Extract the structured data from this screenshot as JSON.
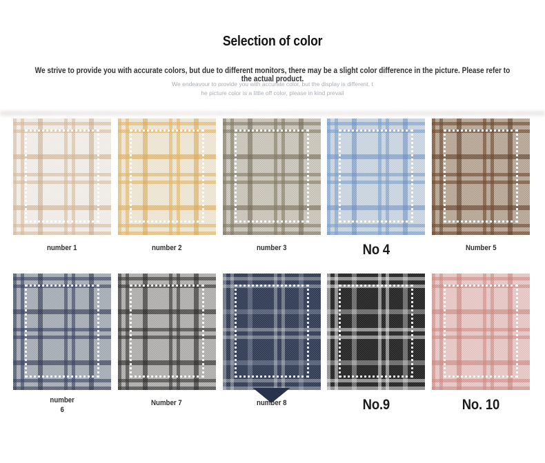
{
  "page": {
    "title": "Selection of color",
    "subtitle": "We strive to provide you with accurate colors, but due to different monitors, there may be a slight color difference in the picture. Please refer to the actual product.",
    "note_line1": "We endeavour to provide you with accurate color, but the display is different, t",
    "note_line2": "he picture color is a little off color, please in kind prevail"
  },
  "swatches": [
    {
      "label": "number 1",
      "label_style": "small",
      "row": 1,
      "color_name": "cream-beige-plaid",
      "colors": {
        "base": "#f5f1eb",
        "band": "rgba(212,181,146,0.55)",
        "band2": "rgba(198,162,122,0.50)",
        "stitch": "rgba(255,255,255,0.95)"
      }
    },
    {
      "label": "number 2",
      "label_style": "small",
      "row": 1,
      "color_name": "yellow-gold-plaid",
      "colors": {
        "base": "#f1e9d6",
        "band": "rgba(228,179,94,0.60)",
        "band2": "rgba(219,163,72,0.55)",
        "stitch": "rgba(255,255,255,0.95)"
      }
    },
    {
      "label": "number 3",
      "label_style": "small",
      "row": 1,
      "color_name": "taupe-olive-plaid",
      "colors": {
        "base": "#ccc7bb",
        "band": "rgba(124,115,92,0.60)",
        "band2": "rgba(103,94,72,0.55)",
        "stitch": "rgba(255,255,255,0.95)"
      }
    },
    {
      "label": "No 4",
      "label_style": "large",
      "row": 1,
      "color_name": "light-blue-plaid",
      "colors": {
        "base": "#ccd7e3",
        "band": "rgba(112,152,201,0.55)",
        "band2": "rgba(92,132,186,0.50)",
        "stitch": "rgba(255,255,255,0.95)"
      }
    },
    {
      "label": "Number 5",
      "label_style": "small",
      "row": 1,
      "color_name": "brown-tweed-plaid",
      "colors": {
        "base": "#b9a795",
        "band": "rgba(104,64,34,0.62)",
        "band2": "rgba(82,49,25,0.58)",
        "stitch": "rgba(255,255,255,0.95)"
      }
    },
    {
      "label": "number\n6",
      "label_style": "small",
      "row": 2,
      "color_name": "blue-gray-navy-plaid",
      "colors": {
        "base": "#a8adb7",
        "band": "rgba(43,55,85,0.60)",
        "band2": "rgba(31,41,67,0.58)",
        "stitch": "rgba(255,255,255,0.90)"
      }
    },
    {
      "label": "Number 7",
      "label_style": "small",
      "row": 2,
      "color_name": "gray-black-plaid",
      "colors": {
        "base": "#b2b0ad",
        "band": "rgba(41,41,41,0.62)",
        "band2": "rgba(22,22,22,0.58)",
        "stitch": "rgba(255,255,255,0.90)"
      }
    },
    {
      "label": "number 8",
      "label_style": "small",
      "row": 2,
      "fold": true,
      "color_name": "navy-white-crosshatch",
      "colors": {
        "base": "#2d3852",
        "band": "rgba(255,255,255,0.32)",
        "band2": "rgba(230,235,245,0.22)",
        "stitch": "rgba(255,255,255,0.90)"
      }
    },
    {
      "label": "No.9",
      "label_style": "large",
      "row": 2,
      "color_name": "black-white-crosshatch",
      "colors": {
        "base": "#202020",
        "band": "rgba(255,255,255,0.50)",
        "band2": "rgba(255,255,255,0.34)",
        "stitch": "rgba(255,255,255,0.92)"
      }
    },
    {
      "label": "No. 10",
      "label_style": "large",
      "row": 2,
      "color_name": "pink-rose-plaid",
      "colors": {
        "base": "#e9cac6",
        "band": "rgba(206,131,125,0.55)",
        "band2": "rgba(196,116,110,0.50)",
        "stitch": "rgba(255,255,255,0.95)"
      }
    }
  ]
}
